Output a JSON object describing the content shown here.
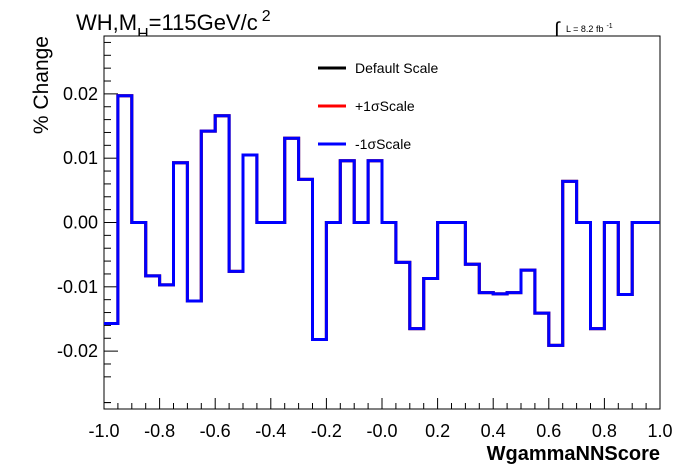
{
  "header": {
    "title_main": "WH,M",
    "title_sub": "H",
    "title_tail": "=115GeV/c",
    "title_sup": "2",
    "lumi_symbol": "∫",
    "lumi_text": "L = 8.2 fb",
    "lumi_sup": "-1"
  },
  "chart_data": {
    "type": "line",
    "step": true,
    "xlabel": "WgammaNNScore",
    "ylabel": "% Change",
    "xlim": [
      -1.0,
      1.0
    ],
    "ylim": [
      -0.029,
      0.029
    ],
    "xticks": [
      -1.0,
      -0.8,
      -0.6,
      -0.4,
      -0.2,
      0.0,
      0.2,
      0.4,
      0.6,
      0.8,
      1.0
    ],
    "xtick_labels": [
      "-1.0",
      "-0.8",
      "-0.6",
      "-0.4",
      "-0.2",
      "-0.0",
      "0.2",
      "0.4",
      "0.6",
      "0.8",
      "1.0"
    ],
    "yticks": [
      -0.02,
      -0.01,
      0.0,
      0.01,
      0.02
    ],
    "ytick_labels": [
      "-0.02",
      "-0.01",
      "0.00",
      "0.01",
      "0.02"
    ],
    "grid": false,
    "legend_position": "top-center",
    "bin_edges": [
      -1.0,
      -0.95,
      -0.9,
      -0.85,
      -0.8,
      -0.75,
      -0.7,
      -0.65,
      -0.6,
      -0.55,
      -0.5,
      -0.45,
      -0.4,
      -0.35,
      -0.3,
      -0.25,
      -0.2,
      -0.15,
      -0.1,
      -0.05,
      0.0,
      0.05,
      0.1,
      0.15,
      0.2,
      0.25,
      0.3,
      0.35,
      0.4,
      0.45,
      0.5,
      0.55,
      0.6,
      0.65,
      0.7,
      0.75,
      0.8,
      0.85,
      0.9,
      0.95,
      1.0
    ],
    "series": [
      {
        "name": "Default Scale",
        "color": "#000000",
        "values": [
          -0.0157,
          0.0197,
          0.0,
          -0.0083,
          -0.0097,
          0.0093,
          -0.0122,
          0.0142,
          0.0166,
          -0.0076,
          0.0105,
          0.0,
          0.0,
          0.0131,
          0.0067,
          -0.0182,
          0.0,
          0.0096,
          0.0,
          0.0096,
          0.0,
          -0.0062,
          -0.0165,
          -0.0087,
          0.0,
          0.0,
          -0.0065,
          -0.0109,
          -0.0111,
          -0.0109,
          -0.0074,
          -0.0141,
          -0.0191,
          0.0064,
          0.0,
          -0.0165,
          0.0,
          -0.0112,
          0.0,
          0.0
        ]
      },
      {
        "name": "+1σScale",
        "color": "#ff0000",
        "values": [
          -0.0157,
          0.0197,
          0.0,
          -0.0083,
          -0.0097,
          0.0093,
          -0.0122,
          0.0142,
          0.0166,
          -0.0076,
          0.0105,
          0.0,
          0.0,
          0.0131,
          0.0067,
          -0.0182,
          0.0,
          0.0096,
          0.0,
          0.0096,
          0.0,
          -0.0062,
          -0.0165,
          -0.0087,
          0.0,
          0.0,
          -0.0065,
          -0.0109,
          -0.0111,
          -0.0109,
          -0.0074,
          -0.0141,
          -0.0191,
          0.0064,
          0.0,
          -0.0165,
          0.0,
          -0.0112,
          0.0,
          0.0
        ]
      },
      {
        "name": "-1σScale",
        "color": "#0000ff",
        "values": [
          -0.0157,
          0.0197,
          0.0,
          -0.0083,
          -0.0097,
          0.0093,
          -0.0122,
          0.0142,
          0.0166,
          -0.0076,
          0.0105,
          0.0,
          0.0,
          0.0131,
          0.0067,
          -0.0182,
          0.0,
          0.0096,
          0.0,
          0.0096,
          0.0,
          -0.0062,
          -0.0165,
          -0.0087,
          0.0,
          0.0,
          -0.0065,
          -0.0109,
          -0.0111,
          -0.0109,
          -0.0074,
          -0.0141,
          -0.0191,
          0.0064,
          0.0,
          -0.0165,
          0.0,
          -0.0112,
          0.0,
          0.0
        ]
      }
    ]
  }
}
